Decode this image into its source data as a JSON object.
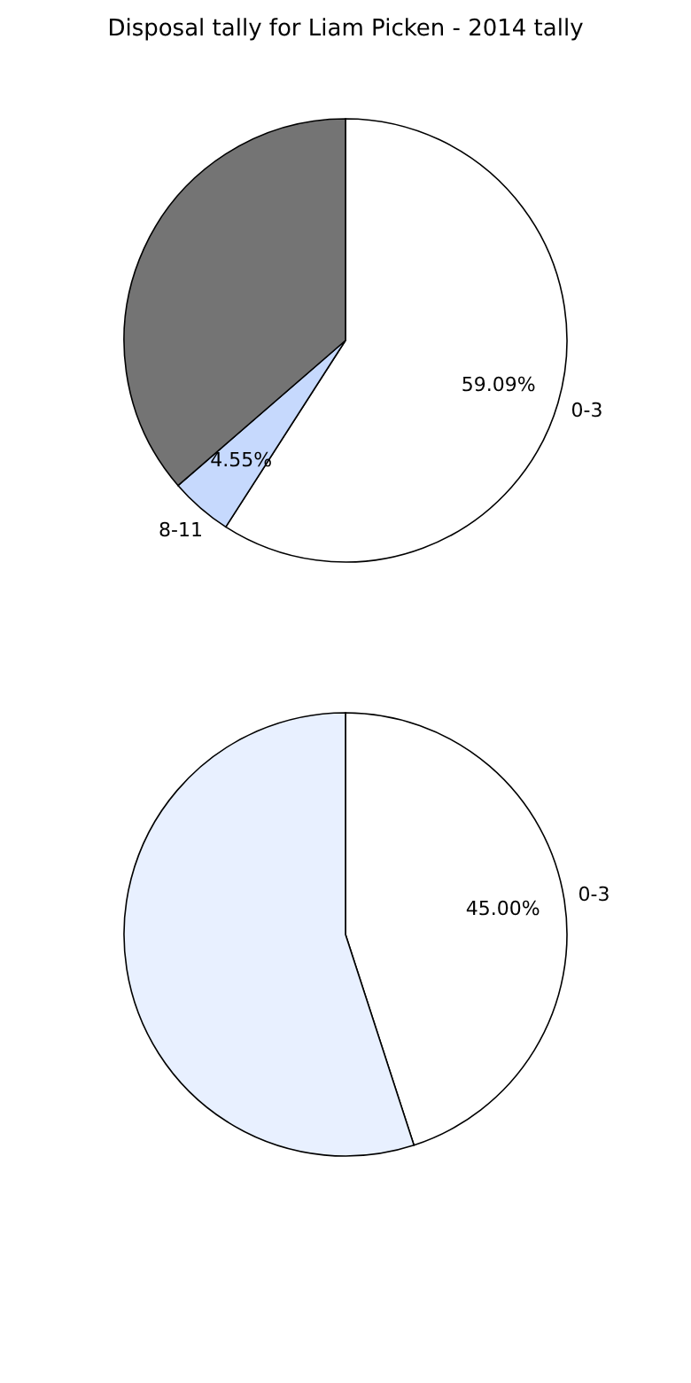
{
  "chart_data": [
    {
      "type": "pie",
      "title": "Disposal tally for Liam Picken - 2014 tally",
      "categories": [
        "0-3",
        "8-11",
        null
      ],
      "values": [
        59.09,
        4.55,
        36.36
      ],
      "colors": [
        "#ffffff",
        "#c6d9fd",
        "#747474"
      ],
      "value_labels": [
        "59.09%",
        "4.55%",
        null
      ]
    },
    {
      "type": "pie",
      "categories": [
        "0-3",
        null
      ],
      "values": [
        45.0,
        55.0
      ],
      "colors": [
        "#ffffff",
        "#e8f0ff"
      ],
      "value_labels": [
        "45.00%",
        null
      ]
    }
  ]
}
